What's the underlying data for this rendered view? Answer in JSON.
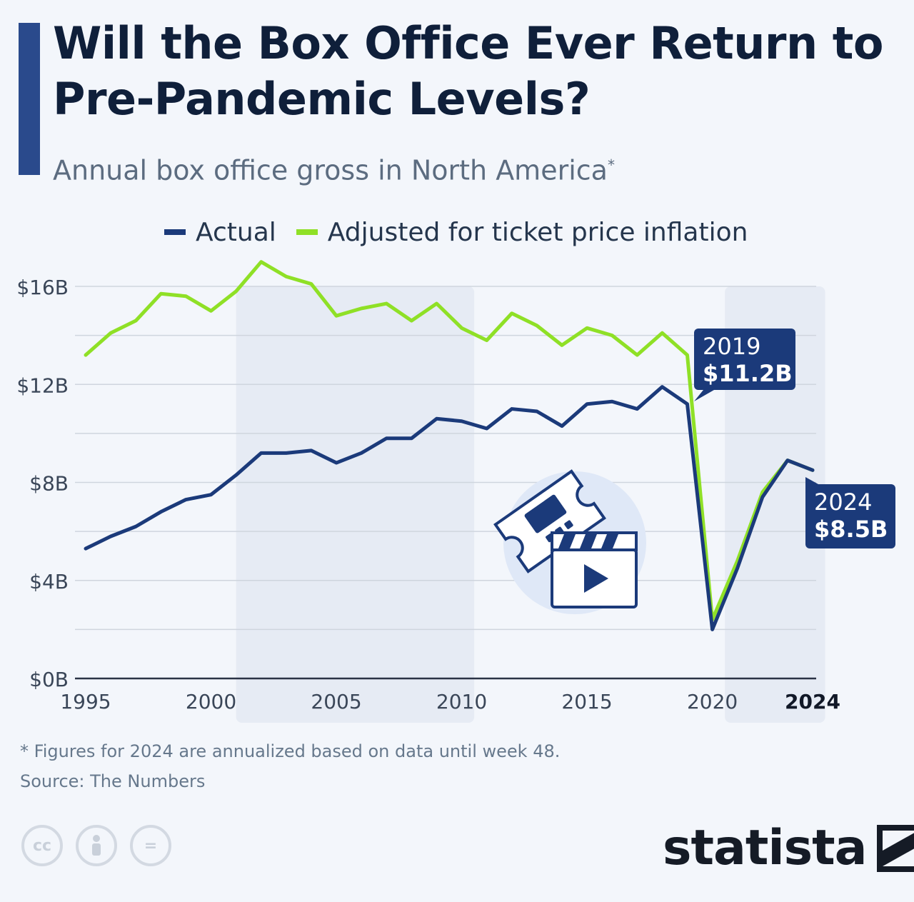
{
  "title": "Will the Box Office Ever Return to Pre-Pandemic Levels?",
  "subtitle": "Annual box office gross in North America",
  "subtitle_marker": "*",
  "footnote": "* Figures for 2024 are annualized based on data until week 48.",
  "source": "Source: The Numbers",
  "brand": "statista",
  "license_icons": [
    "cc-icon",
    "person-icon",
    "equals-icon"
  ],
  "license_text": {
    "cc": "cc",
    "equals": "="
  },
  "colors": {
    "actual": "#1b3a7a",
    "adjusted": "#8fe026",
    "shade": "#e6ebf4",
    "callout": "#1b3a7a"
  },
  "chart_data": {
    "type": "line",
    "title": "Will the Box Office Ever Return to Pre-Pandemic Levels?",
    "subtitle": "Annual box office gross in North America",
    "y_tick_labels": [
      "$0B",
      "$4B",
      "$8B",
      "$12B",
      "$16B"
    ],
    "y_ticks": [
      0,
      4,
      8,
      12,
      16
    ],
    "ylim": [
      0,
      16
    ],
    "x_tick_labels": [
      "1995",
      "2000",
      "2005",
      "2010",
      "2015",
      "2020",
      "2024"
    ],
    "x_ticks": [
      1995,
      2000,
      2005,
      2010,
      2015,
      2020,
      2024
    ],
    "xlim": [
      1995,
      2024
    ],
    "grid": true,
    "legend_position": "top",
    "shaded_ranges": [
      [
        2001,
        2010.5
      ],
      [
        2020.5,
        2024.5
      ]
    ],
    "x": [
      1995,
      1996,
      1997,
      1998,
      1999,
      2000,
      2001,
      2002,
      2003,
      2004,
      2005,
      2006,
      2007,
      2008,
      2009,
      2010,
      2011,
      2012,
      2013,
      2014,
      2015,
      2016,
      2017,
      2018,
      2019,
      2020,
      2021,
      2022,
      2023,
      2024
    ],
    "series": [
      {
        "name": "Actual",
        "key": "actual",
        "values": [
          5.3,
          5.8,
          6.2,
          6.8,
          7.3,
          7.5,
          8.3,
          9.2,
          9.2,
          9.3,
          8.8,
          9.2,
          9.8,
          9.8,
          10.6,
          10.5,
          10.2,
          11.0,
          10.9,
          10.3,
          11.2,
          11.3,
          11.0,
          11.9,
          11.2,
          2.0,
          4.5,
          7.4,
          8.9,
          8.5
        ]
      },
      {
        "name": "Adjusted for ticket price inflation",
        "key": "adjusted",
        "values": [
          13.2,
          14.1,
          14.6,
          15.7,
          15.6,
          15.0,
          15.8,
          17.0,
          16.4,
          16.1,
          14.8,
          15.1,
          15.3,
          14.6,
          15.3,
          14.3,
          13.8,
          14.9,
          14.4,
          13.6,
          14.3,
          14.0,
          13.2,
          14.1,
          13.2,
          2.4,
          4.8,
          7.6,
          8.9,
          8.5
        ]
      }
    ],
    "annotations": [
      {
        "year": "2019",
        "value": "$11.2B",
        "x": 2019,
        "y": 11.2
      },
      {
        "year": "2024",
        "value": "$8.5B",
        "x": 2024,
        "y": 8.5
      }
    ]
  }
}
